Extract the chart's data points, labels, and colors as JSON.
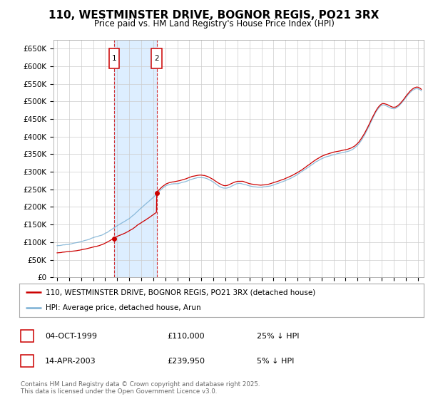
{
  "title": "110, WESTMINSTER DRIVE, BOGNOR REGIS, PO21 3RX",
  "subtitle": "Price paid vs. HM Land Registry's House Price Index (HPI)",
  "title_fontsize": 11,
  "subtitle_fontsize": 9,
  "ylabel_ticks": [
    "£0",
    "£50K",
    "£100K",
    "£150K",
    "£200K",
    "£250K",
    "£300K",
    "£350K",
    "£400K",
    "£450K",
    "£500K",
    "£550K",
    "£600K",
    "£650K"
  ],
  "ytick_values": [
    0,
    50000,
    100000,
    150000,
    200000,
    250000,
    300000,
    350000,
    400000,
    450000,
    500000,
    550000,
    600000,
    650000
  ],
  "ylim": [
    0,
    675000
  ],
  "xlim_start": 1994.7,
  "xlim_end": 2025.5,
  "sale1_date": 1999.75,
  "sale1_price": 110000,
  "sale1_label": "1",
  "sale2_date": 2003.28,
  "sale2_price": 239950,
  "sale2_label": "2",
  "sale_color": "#cc0000",
  "hpi_color": "#7ab0d4",
  "background_color": "#ffffff",
  "plot_bg_color": "#ffffff",
  "grid_color": "#cccccc",
  "legend_entry1": "110, WESTMINSTER DRIVE, BOGNOR REGIS, PO21 3RX (detached house)",
  "legend_entry2": "HPI: Average price, detached house, Arun",
  "table_row1": [
    "1",
    "04-OCT-1999",
    "£110,000",
    "25% ↓ HPI"
  ],
  "table_row2": [
    "2",
    "14-APR-2003",
    "£239,950",
    "5% ↓ HPI"
  ],
  "footnote": "Contains HM Land Registry data © Crown copyright and database right 2025.\nThis data is licensed under the Open Government Licence v3.0.",
  "shaded_region_start": 1999.75,
  "shaded_region_end": 2003.28,
  "shaded_color": "#ddeeff"
}
